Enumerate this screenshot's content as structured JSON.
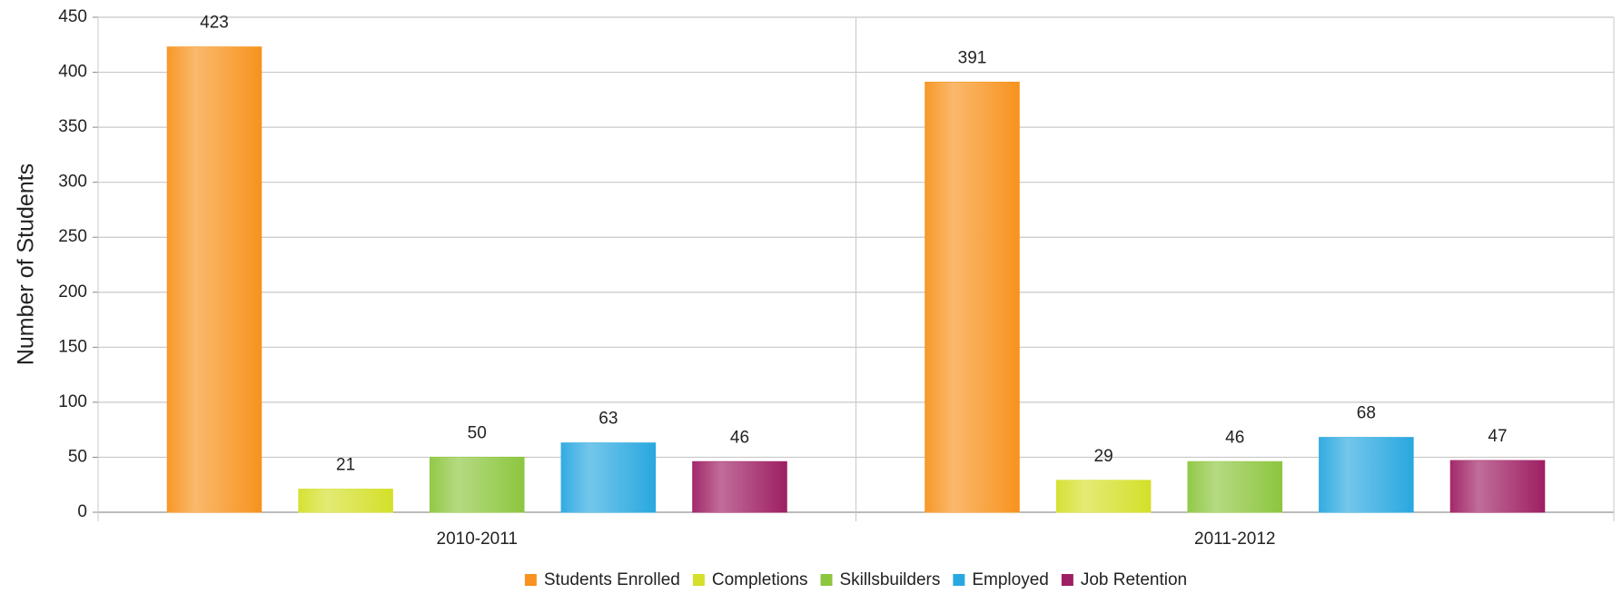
{
  "chart_data": {
    "type": "bar",
    "categories": [
      "2010-2011",
      "2011-2012"
    ],
    "series": [
      {
        "name": "Students Enrolled",
        "color": "#f7931e",
        "values": [
          423,
          391
        ]
      },
      {
        "name": "Completions",
        "color": "#d4e02a",
        "values": [
          21,
          29
        ]
      },
      {
        "name": "Skillsbuilders",
        "color": "#8dc63f",
        "values": [
          50,
          46
        ]
      },
      {
        "name": "Employed",
        "color": "#29a8e0",
        "values": [
          63,
          68
        ]
      },
      {
        "name": "Job Retention",
        "color": "#9e1f63",
        "values": [
          46,
          47
        ]
      }
    ],
    "y_label": "Number of Students",
    "ylim": [
      0,
      450
    ],
    "yticks": [
      0,
      50,
      100,
      150,
      200,
      250,
      300,
      350,
      400,
      450
    ],
    "grid": true,
    "legend": "bottom"
  }
}
